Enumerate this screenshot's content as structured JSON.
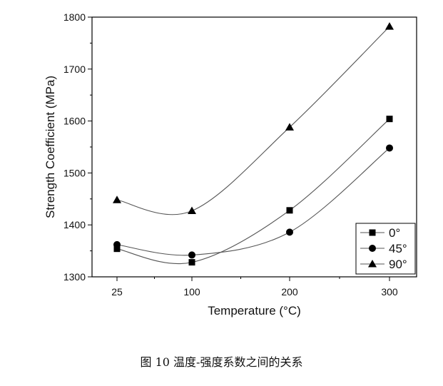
{
  "chart_data": {
    "type": "line",
    "xlabel": "Temperature (°C)",
    "ylabel": "Strength Coefficient (MPa)",
    "categories": [
      "25",
      "100",
      "200",
      "300"
    ],
    "ylim": [
      1300,
      1800
    ],
    "yticks": [
      1300,
      1400,
      1500,
      1600,
      1700,
      1800
    ],
    "grid": false,
    "legend_position": "bottom-right",
    "series": [
      {
        "name": "0°",
        "marker": "square",
        "values": [
          1354,
          1328,
          1428,
          1604
        ]
      },
      {
        "name": "45°",
        "marker": "circle",
        "values": [
          1362,
          1342,
          1386,
          1548
        ]
      },
      {
        "name": "90°",
        "marker": "triangle",
        "values": [
          1448,
          1427,
          1588,
          1782
        ]
      }
    ],
    "colors": {
      "line": "#555555",
      "marker": "#000000",
      "axis": "#000000"
    }
  },
  "caption": "图 10  温度-强度系数之间的关系"
}
